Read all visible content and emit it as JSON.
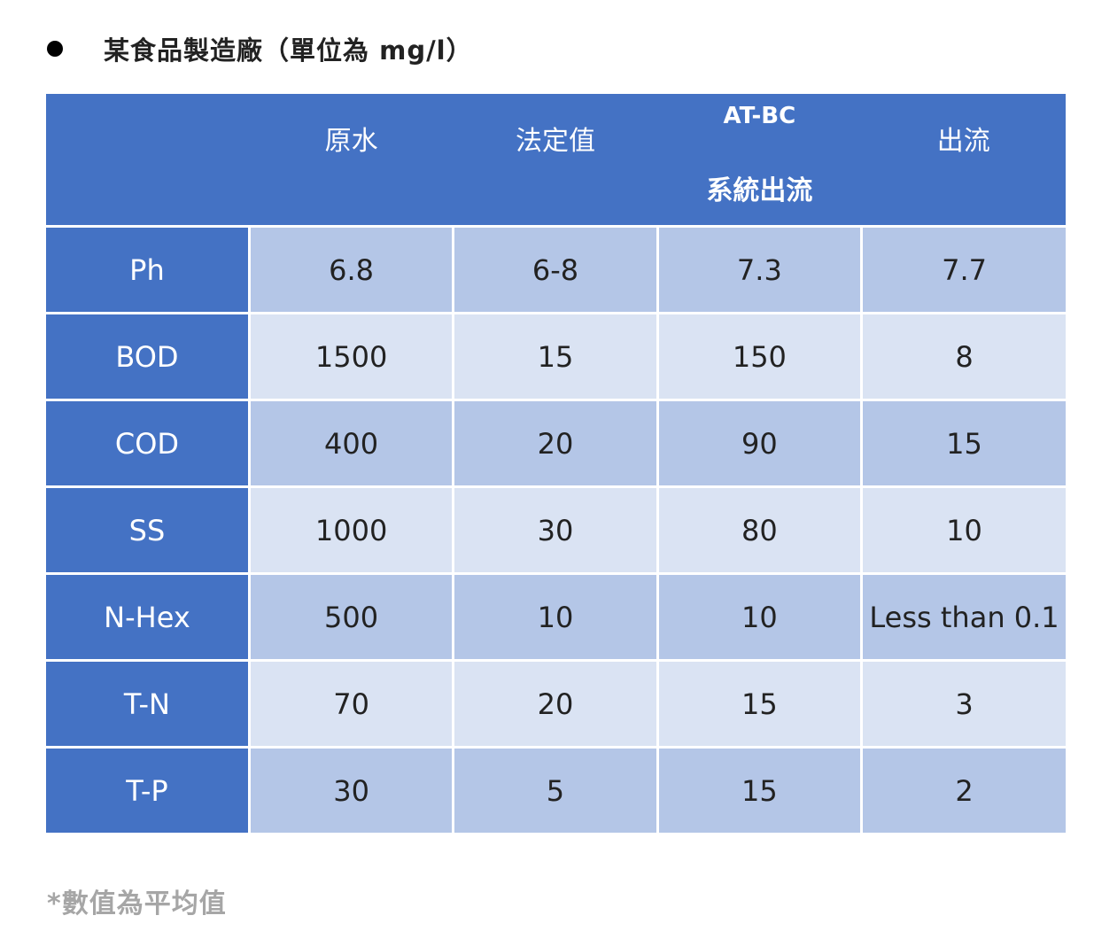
{
  "title": {
    "bullet_icon": "bullet-icon",
    "text": "某食品製造廠（單位為 mg/l）"
  },
  "table": {
    "columns": [
      {
        "label": ""
      },
      {
        "label": "原水"
      },
      {
        "label": "法定值"
      },
      {
        "label_line1": "AT-BC",
        "label_line2": "系統出流"
      },
      {
        "label": "出流"
      }
    ],
    "rows": [
      {
        "name": "Ph",
        "values": [
          "6.8",
          "6-8",
          "7.3",
          "7.7"
        ]
      },
      {
        "name": "BOD",
        "values": [
          "1500",
          "15",
          "150",
          "8"
        ]
      },
      {
        "name": "COD",
        "values": [
          "400",
          "20",
          "90",
          "15"
        ]
      },
      {
        "name": "SS",
        "values": [
          "1000",
          "30",
          "80",
          "10"
        ]
      },
      {
        "name": "N-Hex",
        "values": [
          "500",
          "10",
          "10",
          "Less than 0.1"
        ]
      },
      {
        "name": "T-N",
        "values": [
          "70",
          "20",
          "15",
          "3"
        ]
      },
      {
        "name": "T-P",
        "values": [
          "30",
          "5",
          "15",
          "2"
        ]
      }
    ]
  },
  "footnote": "*數值為平均值",
  "colors": {
    "header_blue": "#4472c4",
    "row_dark": "#b4c6e7",
    "row_light": "#dae3f3",
    "footnote_gray": "#a6a6a6"
  }
}
